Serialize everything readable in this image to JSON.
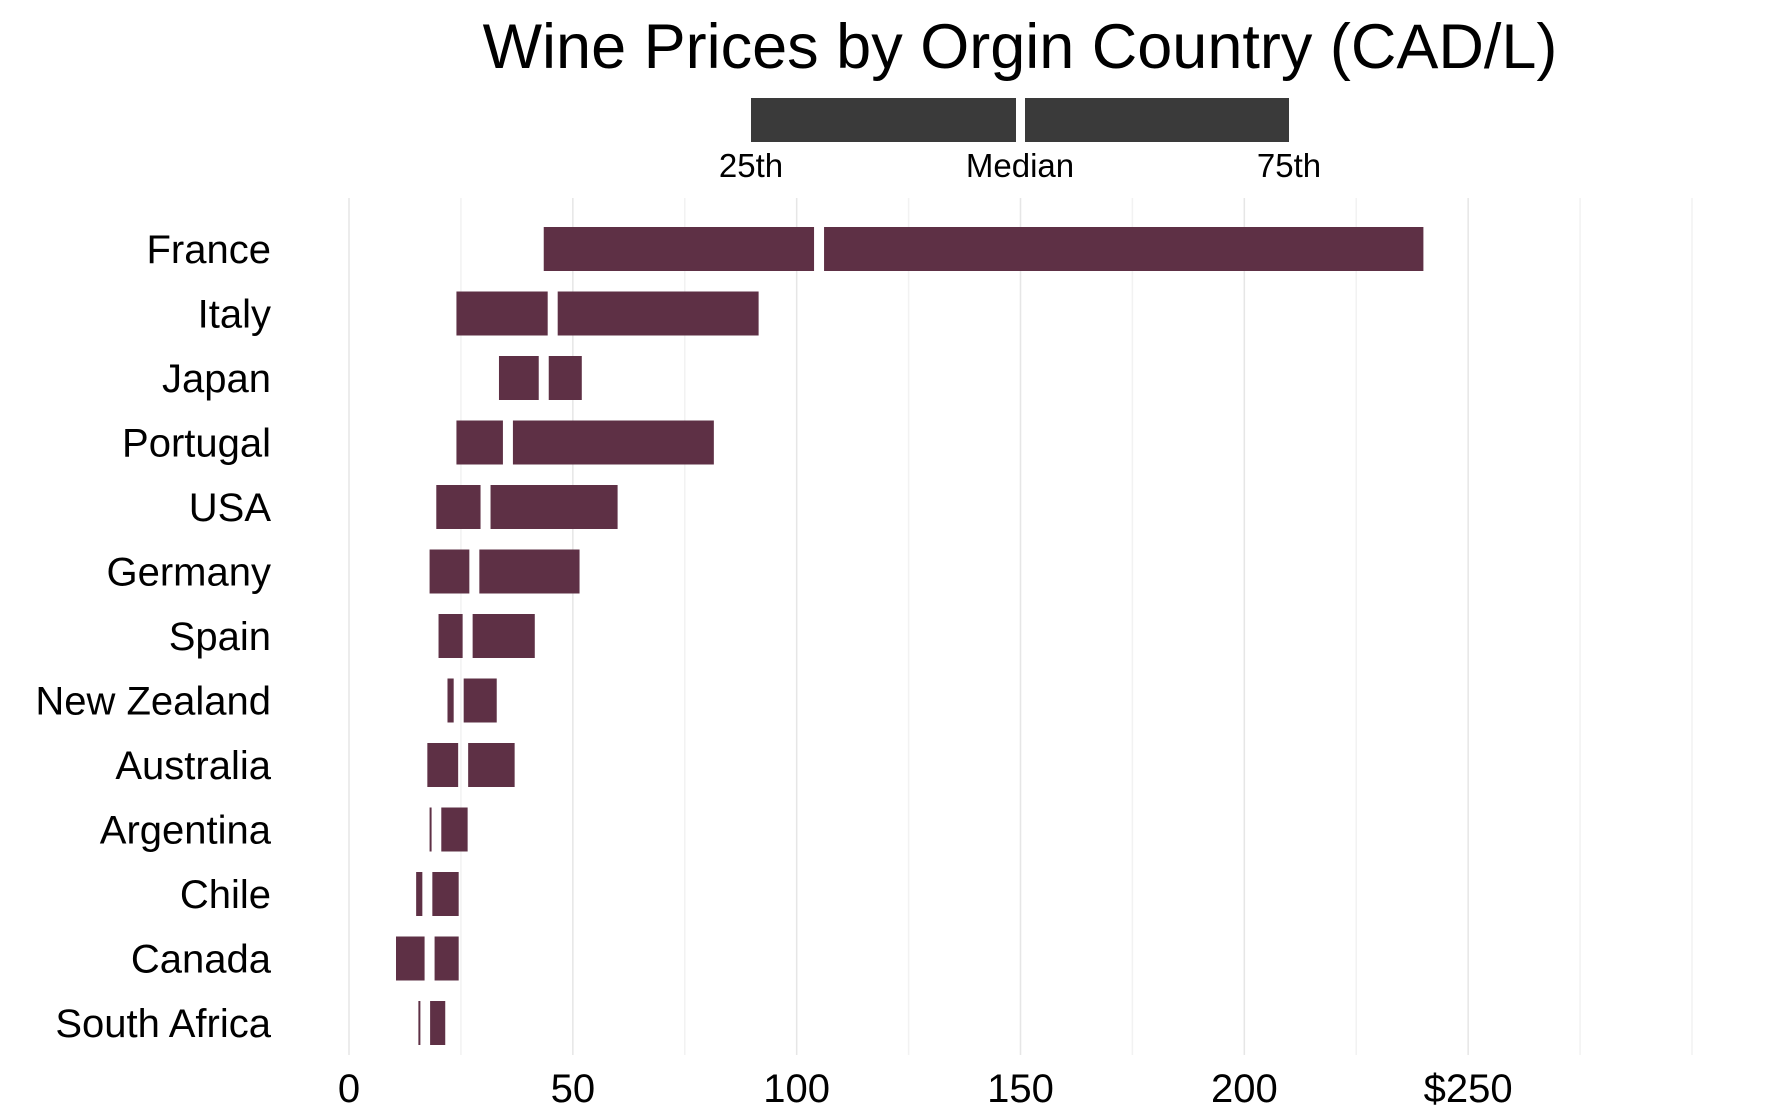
{
  "chart_data": {
    "type": "bar",
    "subtype": "floating-range",
    "title": "Wine Prices by Orgin Country (CAD/L)",
    "xlabel": "",
    "ylabel": "",
    "xlim": [
      0,
      300
    ],
    "x_ticks": [
      0,
      50,
      100,
      150,
      200,
      250
    ],
    "x_tick_labels": [
      "0",
      "50",
      "100",
      "150",
      "200",
      "$250"
    ],
    "grid": true,
    "legend": {
      "position": "top",
      "labels": {
        "p25": "25th",
        "median": "Median",
        "p75": "75th"
      }
    },
    "colors": {
      "bar": "#5e3045",
      "legend_bar": "#3a3a3a",
      "divider": "#ffffff"
    },
    "categories": [
      "France",
      "Italy",
      "Japan",
      "Portugal",
      "USA",
      "Germany",
      "Spain",
      "New Zealand",
      "Australia",
      "Argentina",
      "Chile",
      "Canada",
      "South Africa"
    ],
    "series": [
      {
        "name": "25th",
        "values": [
          43.5,
          24.0,
          33.5,
          24.0,
          19.5,
          18.0,
          20.0,
          22.0,
          17.5,
          18.0,
          15.0,
          10.5,
          15.5
        ]
      },
      {
        "name": "Median",
        "values": [
          105.0,
          45.5,
          43.5,
          35.5,
          30.5,
          28.0,
          26.5,
          24.5,
          25.5,
          19.5,
          17.5,
          18.0,
          17.0
        ]
      },
      {
        "name": "75th",
        "values": [
          240.0,
          91.5,
          52.0,
          81.5,
          60.0,
          51.5,
          41.5,
          33.0,
          37.0,
          26.5,
          24.5,
          24.5,
          21.5
        ]
      }
    ]
  }
}
